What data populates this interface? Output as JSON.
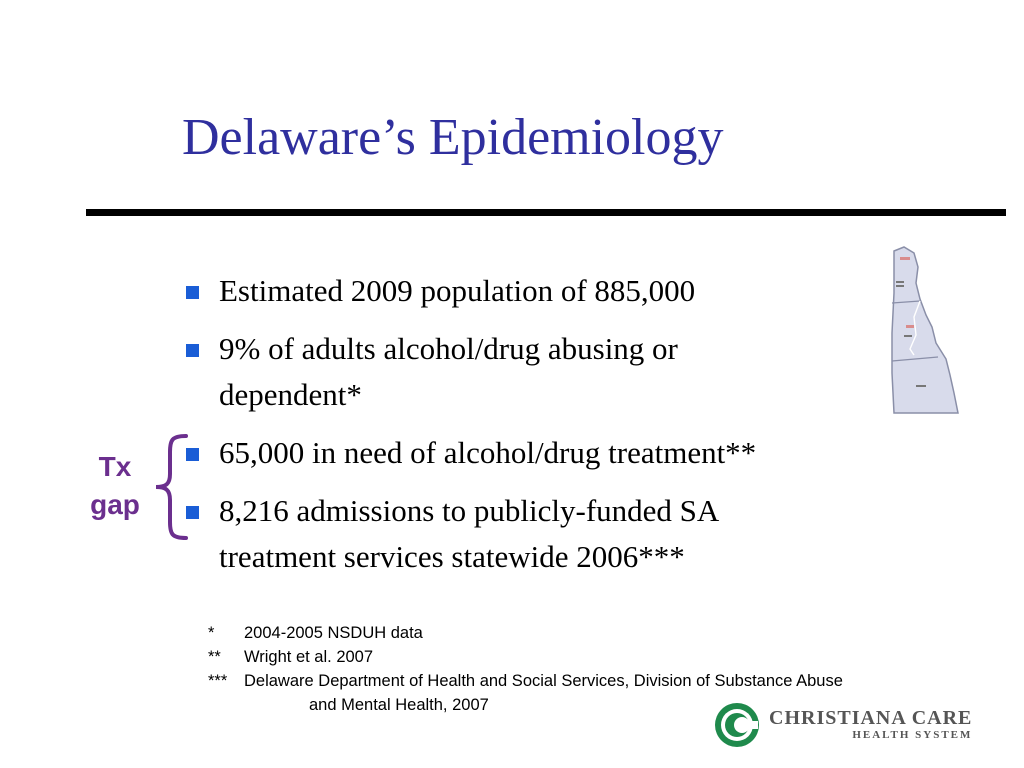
{
  "slide": {
    "title": "Delaware’s Epidemiology",
    "bullets": [
      {
        "lines": [
          "Estimated 2009 population of 885,000"
        ]
      },
      {
        "lines": [
          "9% of adults alcohol/drug abusing or",
          "dependent*"
        ]
      },
      {
        "lines": [
          "65,000 in need of alcohol/drug treatment**"
        ]
      },
      {
        "lines": [
          "8,216 admissions to publicly-funded SA",
          "treatment services statewide 2006***"
        ]
      }
    ],
    "annotation": {
      "lines": [
        "Tx",
        "gap"
      ],
      "color": "#6b2f8e"
    },
    "footnotes": [
      {
        "mark": "*",
        "text": "2004-2005 NSDUH data"
      },
      {
        "mark": "**",
        "text": "Wright et al. 2007"
      },
      {
        "mark": "***",
        "text": "Delaware Department of Health and Social Services, Division of Substance Abuse"
      },
      {
        "mark": "",
        "text": "and Mental Health, 2007"
      }
    ],
    "logo": {
      "name": "CHRISTIANA CARE",
      "subtitle": "HEALTH SYSTEM",
      "color": "#1f8a4c"
    },
    "colors": {
      "title": "#2f2f9e",
      "bullet": "#1a5dd6",
      "rule": "#000000"
    }
  }
}
